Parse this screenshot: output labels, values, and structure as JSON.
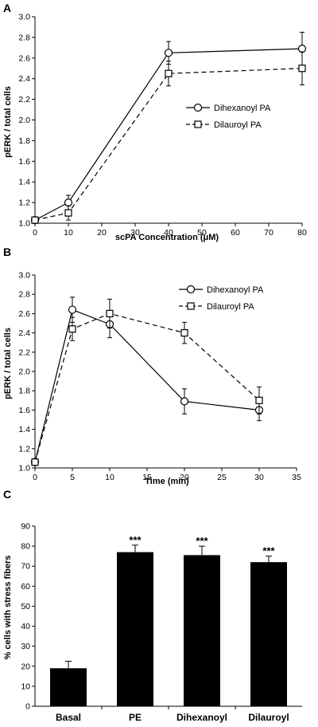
{
  "chart_data": [
    {
      "panel": "A",
      "type": "line",
      "xlabel": "scPA Concentration (μM)",
      "ylabel": "pERK / total cells",
      "xlim": [
        0,
        80
      ],
      "ylim": [
        1.0,
        3.0
      ],
      "xticks": [
        "0",
        "10",
        "20",
        "30",
        "40",
        "50",
        "60",
        "70",
        "80"
      ],
      "yticks": [
        "1.0",
        "1.2",
        "1.4",
        "1.6",
        "1.8",
        "2.0",
        "2.2",
        "2.4",
        "2.6",
        "2.8",
        "3.0"
      ],
      "legend_position": "right-middle",
      "series": [
        {
          "name": "Dihexanoyl PA",
          "marker": "circle",
          "line": "solid",
          "x": [
            0,
            10,
            40,
            80
          ],
          "y": [
            1.03,
            1.2,
            2.65,
            2.69
          ],
          "err": [
            0.02,
            0.07,
            0.11,
            0.16
          ]
        },
        {
          "name": "Dilauroyl PA",
          "marker": "square",
          "line": "dashed",
          "x": [
            0,
            10,
            40,
            80
          ],
          "y": [
            1.03,
            1.1,
            2.45,
            2.5
          ],
          "err": [
            0.02,
            0.07,
            0.12,
            0.16
          ]
        }
      ]
    },
    {
      "panel": "B",
      "type": "line",
      "xlabel": "Time (min)",
      "ylabel": "pERK / total cells",
      "xlim": [
        0,
        35
      ],
      "ylim": [
        1.0,
        3.0
      ],
      "xticks": [
        "0",
        "5",
        "10",
        "15",
        "20",
        "25",
        "30",
        "35"
      ],
      "yticks": [
        "1.0",
        "1.2",
        "1.4",
        "1.6",
        "1.8",
        "2.0",
        "2.2",
        "2.4",
        "2.6",
        "2.8",
        "3.0"
      ],
      "legend_position": "top-right",
      "series": [
        {
          "name": "Dihexanoyl PA",
          "marker": "circle",
          "line": "solid",
          "x": [
            0,
            5,
            10,
            20,
            30
          ],
          "y": [
            1.06,
            2.64,
            2.49,
            1.69,
            1.6
          ],
          "err": [
            0.02,
            0.13,
            0.14,
            0.13,
            0.11
          ]
        },
        {
          "name": "Dilauroyl PA",
          "marker": "square",
          "line": "dashed",
          "x": [
            0,
            5,
            10,
            20,
            30
          ],
          "y": [
            1.06,
            2.44,
            2.6,
            2.4,
            1.7
          ],
          "err": [
            0.02,
            0.12,
            0.15,
            0.11,
            0.14
          ]
        }
      ]
    },
    {
      "panel": "C",
      "type": "bar",
      "ylabel": "% cells with stress fibers",
      "ylim": [
        0,
        90
      ],
      "yticks": [
        "0",
        "10",
        "20",
        "30",
        "40",
        "50",
        "60",
        "70",
        "80",
        "90"
      ],
      "categories": [
        "Basal",
        "PE",
        "Dihexanoyl",
        "Dilauroyl"
      ],
      "values": [
        19,
        77,
        75.5,
        72
      ],
      "err": [
        3.5,
        3.5,
        4.5,
        3
      ],
      "annotations": [
        "",
        "***",
        "***",
        "***"
      ],
      "bar_color": "#000000"
    }
  ]
}
